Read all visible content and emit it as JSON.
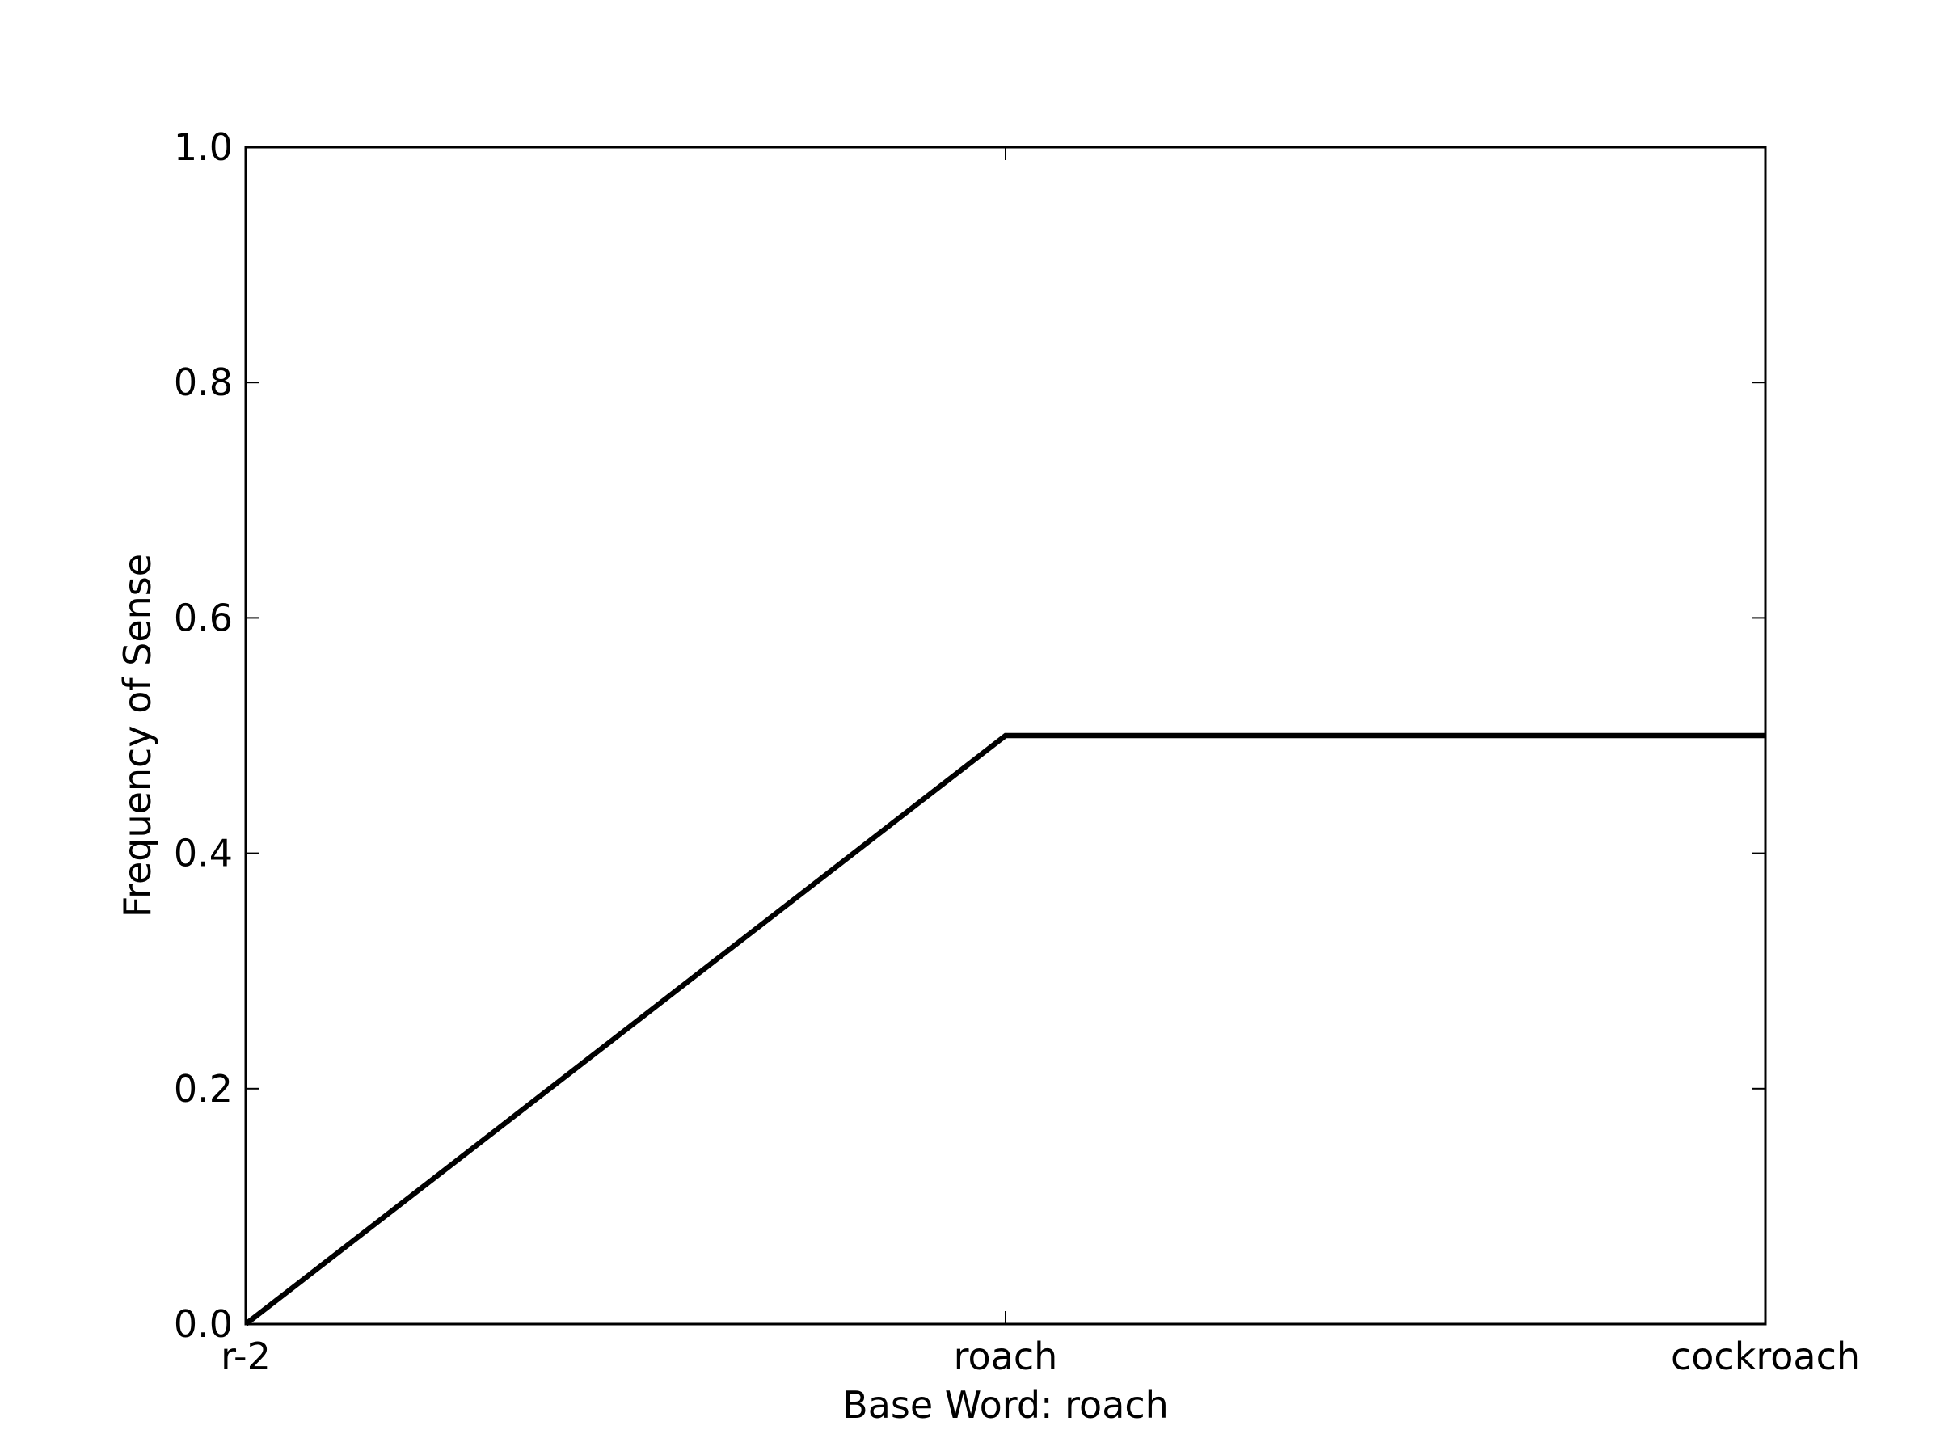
{
  "chart_data": {
    "type": "line",
    "title": "",
    "xlabel": "Base Word: roach",
    "ylabel": "Frequency of Sense",
    "categories": [
      "r-2",
      "roach",
      "cockroach"
    ],
    "series": [
      {
        "values": [
          0.0,
          0.5,
          0.5
        ],
        "color": "#000000"
      }
    ],
    "ylim": [
      0.0,
      1.0
    ],
    "yticks": [
      0.0,
      0.2,
      0.4,
      0.6,
      0.8,
      1.0
    ],
    "ytick_labels": [
      "0.0",
      "0.2",
      "0.4",
      "0.6",
      "0.8",
      "1.0"
    ],
    "grid": false,
    "legend": "none"
  }
}
